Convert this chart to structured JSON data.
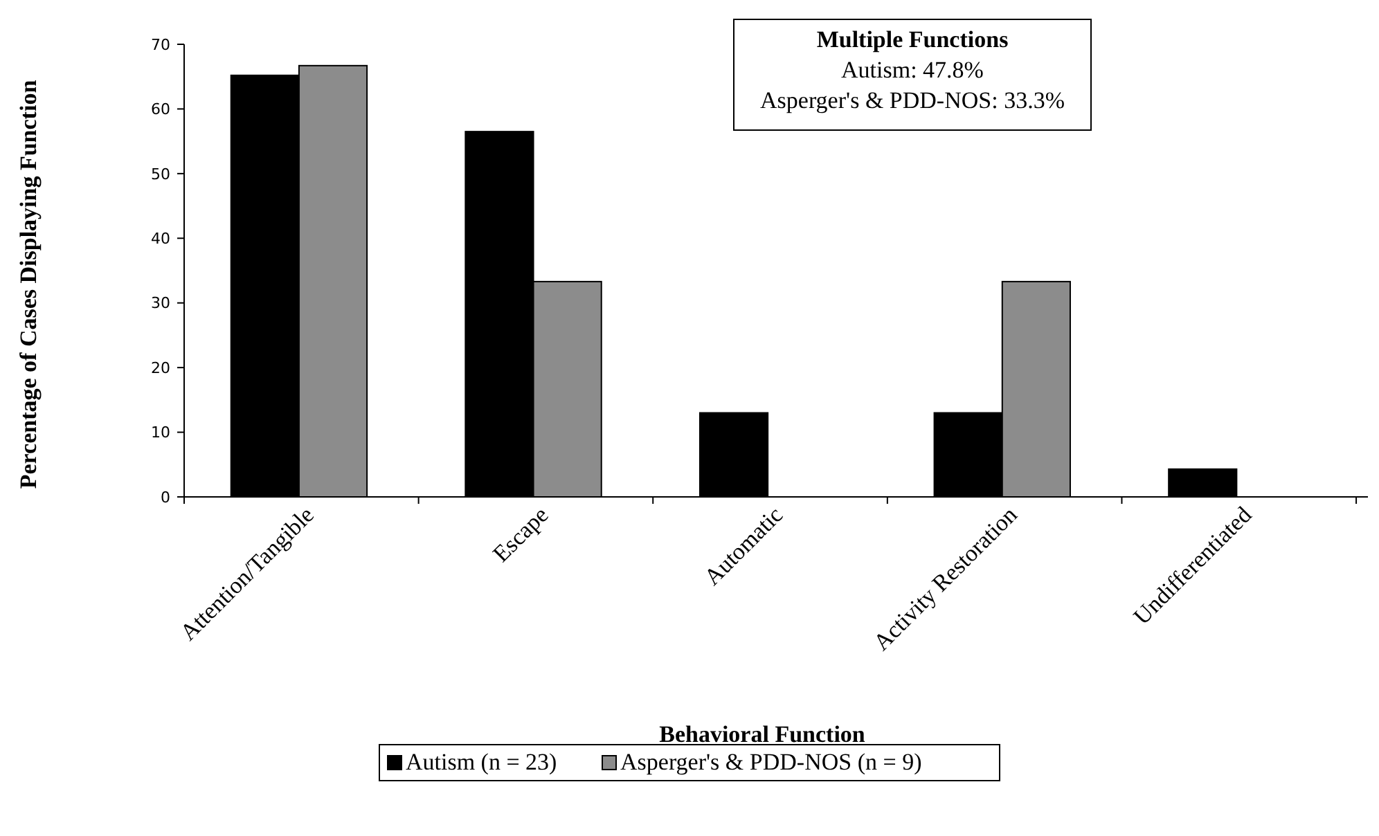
{
  "chart_data": {
    "type": "bar",
    "xlabel": "Behavioral Function",
    "ylabel": "Percentage of Cases Displaying Function",
    "categories": [
      "Attention/Tangible",
      "Escape",
      "Automatic",
      "Activity Restoration",
      "Undifferentiated"
    ],
    "series": [
      {
        "name": "Autism (n = 23)",
        "color": "#000000",
        "values": [
          65.2,
          56.5,
          13,
          13,
          4.3
        ]
      },
      {
        "name": "Asperger's & PDD-NOS (n = 9)",
        "color": "#8c8c8c",
        "values": [
          66.7,
          33.3,
          0,
          33.3,
          0
        ]
      }
    ],
    "ylim": [
      0,
      70
    ],
    "yticks": [
      0,
      10,
      20,
      30,
      40,
      50,
      60,
      70
    ],
    "grid": false,
    "legend": "bottom",
    "annotations": [
      "Multiple Functions",
      "Autism: 47.8%",
      "Asperger's & PDD-NOS: 33.3%"
    ]
  }
}
